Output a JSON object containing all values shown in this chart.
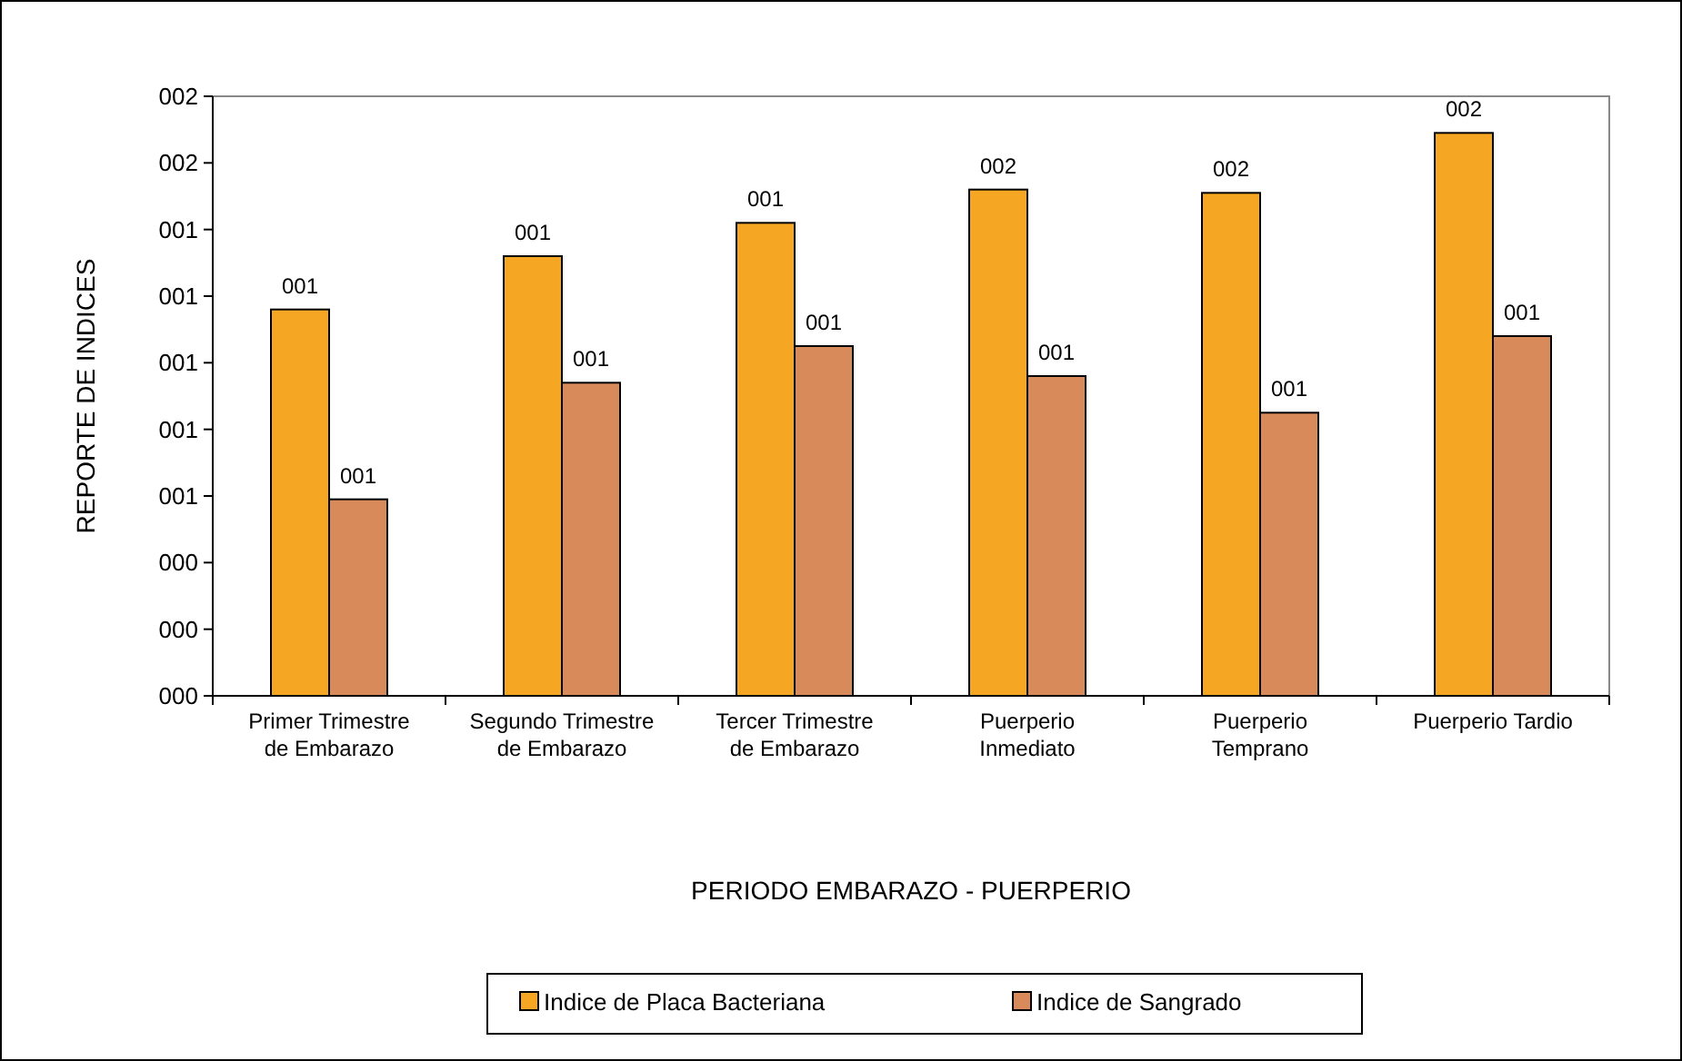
{
  "chart_data": {
    "type": "bar",
    "xlabel": "PERIODO EMBARAZO - PUERPERIO",
    "ylabel": "REPORTE DE INDICES",
    "categories": [
      "Primer Trimestre de Embarazo",
      "Segundo Trimestre de Embarazo",
      "Tercer Trimestre de Embarazo",
      "Puerperio Inmediato",
      "Puerperio Temprano",
      "Puerperio Tardio"
    ],
    "series": [
      {
        "name": "Indice de Placa Bacteriana",
        "color": "#f5a623",
        "values": [
          1.16,
          1.32,
          1.42,
          1.52,
          1.51,
          1.69
        ],
        "value_labels": [
          "001",
          "001",
          "001",
          "002",
          "002",
          "002"
        ]
      },
      {
        "name": "Indice de Sangrado",
        "color": "#d98a5a",
        "values": [
          0.59,
          0.94,
          1.05,
          0.96,
          0.85,
          1.08
        ],
        "value_labels": [
          "001",
          "001",
          "001",
          "001",
          "001",
          "001"
        ]
      }
    ],
    "ylim": [
      0,
      1.8
    ],
    "yticks": [
      {
        "value": 0,
        "label": "000"
      },
      {
        "value": 0.2,
        "label": "000"
      },
      {
        "value": 0.4,
        "label": "000"
      },
      {
        "value": 0.6,
        "label": "001"
      },
      {
        "value": 0.8,
        "label": "001"
      },
      {
        "value": 1,
        "label": "001"
      },
      {
        "value": 1.2,
        "label": "001"
      },
      {
        "value": 1.4,
        "label": "001"
      },
      {
        "value": 1.6,
        "label": "002"
      },
      {
        "value": 1.8,
        "label": "002"
      }
    ],
    "grid": false,
    "legend": "bottom"
  }
}
